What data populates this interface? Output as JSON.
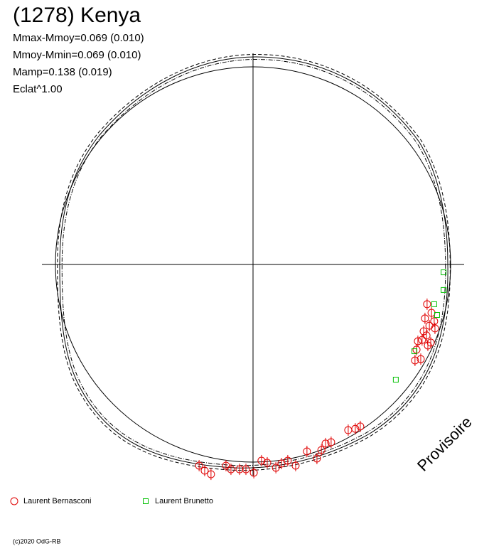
{
  "chart_data": {
    "type": "scatter",
    "title": "(1278) Kenya",
    "annotations": [
      "Mmax-Mmoy=0.069 (0.010)",
      "Mmoy-Mmin=0.069 (0.010)",
      "Mamp=0.138 (0.019)",
      "Eclat^1.00"
    ],
    "watermark": "Provisoire",
    "copyright": "(c)2020 OdG-RB",
    "xlim": [
      -1.1,
      1.1
    ],
    "ylim": [
      -1.1,
      1.1
    ],
    "series": [
      {
        "name": "Laurent Bernasconi",
        "color": "#e00000",
        "marker": "circle",
        "x": [
          0.907,
          0.93,
          0.896,
          0.944,
          0.919,
          0.889,
          0.948,
          0.904,
          0.881,
          0.926,
          0.859,
          0.911,
          0.852,
          0.874,
          0.844,
          -0.281,
          -0.252,
          -0.219,
          -0.141,
          -0.115,
          -0.07,
          -0.037,
          0.004,
          0.044,
          0.074,
          0.119,
          0.148,
          0.181,
          0.222,
          0.281,
          0.333,
          0.356,
          0.378,
          0.407,
          0.496,
          0.533,
          0.559
        ],
        "values": [
          -0.207,
          -0.252,
          -0.281,
          -0.296,
          -0.319,
          -0.348,
          -0.333,
          -0.37,
          -0.393,
          -0.407,
          -0.4,
          -0.422,
          -0.444,
          -0.493,
          -0.5,
          -1.048,
          -1.074,
          -1.093,
          -1.048,
          -1.067,
          -1.067,
          -1.067,
          -1.085,
          -1.022,
          -1.033,
          -1.059,
          -1.037,
          -1.022,
          -1.048,
          -0.974,
          -1.011,
          -0.967,
          -0.933,
          -0.926,
          -0.863,
          -0.856,
          -0.844
        ]
      },
      {
        "name": "Laurent Brunetto",
        "color": "#00c000",
        "marker": "square",
        "x": [
          0.993,
          0.993,
          0.944,
          0.959,
          0.841,
          0.744
        ],
        "values": [
          -0.041,
          -0.133,
          -0.207,
          -0.263,
          -0.452,
          -0.6
        ]
      }
    ]
  }
}
